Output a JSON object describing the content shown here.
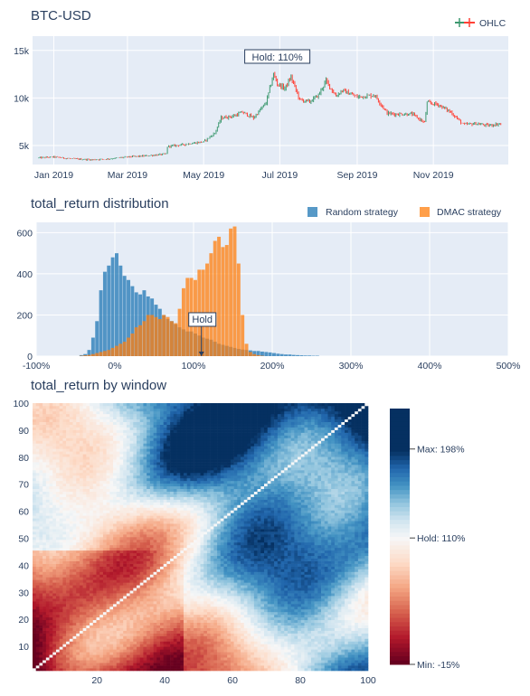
{
  "chart_data": [
    {
      "type": "candlestick",
      "title": "BTC-USD",
      "legend": [
        "OHLC"
      ],
      "legend_position": "top-right",
      "x_ticks": [
        "Jan 2019",
        "Mar 2019",
        "May 2019",
        "Jul 2019",
        "Sep 2019",
        "Nov 2019"
      ],
      "y_ticks": [
        "5k",
        "10k",
        "15k"
      ],
      "ylim": [
        3000,
        16500
      ],
      "grid": true,
      "colors": {
        "up": "#3d9970",
        "down": "#ff4136"
      },
      "annotation": "Hold: 110%",
      "price_path": {
        "x": [
          "2018-12-20",
          "2019-01-01",
          "2019-01-15",
          "2019-02-01",
          "2019-02-15",
          "2019-03-01",
          "2019-03-15",
          "2019-04-01",
          "2019-04-02",
          "2019-04-15",
          "2019-05-01",
          "2019-05-10",
          "2019-05-15",
          "2019-05-25",
          "2019-06-01",
          "2019-06-10",
          "2019-06-20",
          "2019-06-26",
          "2019-06-29",
          "2019-07-05",
          "2019-07-10",
          "2019-07-17",
          "2019-07-25",
          "2019-08-01",
          "2019-08-07",
          "2019-08-15",
          "2019-08-20",
          "2019-09-01",
          "2019-09-15",
          "2019-09-25",
          "2019-10-01",
          "2019-10-15",
          "2019-10-25",
          "2019-10-27",
          "2019-11-05",
          "2019-11-15",
          "2019-11-25",
          "2019-12-05",
          "2019-12-15",
          "2019-12-25"
        ],
        "close": [
          3700,
          3800,
          3600,
          3500,
          3600,
          3800,
          3900,
          4100,
          4900,
          5100,
          5400,
          6300,
          7900,
          8100,
          8500,
          7900,
          9500,
          12500,
          11500,
          11000,
          12200,
          9800,
          9600,
          10300,
          11800,
          10200,
          10800,
          10100,
          10300,
          8400,
          8300,
          8300,
          7400,
          9500,
          9300,
          8500,
          7200,
          7300,
          7100,
          7300
        ]
      }
    },
    {
      "type": "histogram",
      "title": "total_return distribution",
      "legend_position": "top-right",
      "x_ticks": [
        "-100%",
        "0%",
        "100%",
        "200%",
        "300%",
        "400%",
        "500%"
      ],
      "y_ticks": [
        "0",
        "200",
        "400",
        "600"
      ],
      "xlim": [
        -100,
        500
      ],
      "ylim": [
        0,
        650
      ],
      "bin_width": 5,
      "annotation": {
        "text": "Hold",
        "x": 110
      },
      "series": [
        {
          "name": "Random strategy",
          "color": "#1f77b4",
          "x": [
            -45,
            -40,
            -35,
            -30,
            -25,
            -20,
            -15,
            -10,
            -5,
            0,
            5,
            10,
            15,
            20,
            25,
            30,
            35,
            40,
            45,
            50,
            55,
            60,
            65,
            70,
            75,
            80,
            85,
            90,
            95,
            100,
            105,
            110,
            115,
            120,
            125,
            130,
            135,
            140,
            145,
            150,
            155,
            160,
            165,
            170,
            175,
            180,
            185,
            190,
            195,
            200,
            205,
            210,
            215,
            220,
            225,
            230,
            235,
            240,
            245,
            250,
            255
          ],
          "values": [
            5,
            10,
            30,
            90,
            170,
            320,
            410,
            440,
            480,
            500,
            440,
            390,
            370,
            340,
            310,
            300,
            320,
            290,
            280,
            250,
            230,
            200,
            180,
            170,
            155,
            140,
            130,
            120,
            120,
            110,
            100,
            90,
            85,
            80,
            70,
            60,
            55,
            50,
            45,
            40,
            35,
            32,
            30,
            28,
            25,
            25,
            22,
            20,
            18,
            15,
            12,
            10,
            8,
            8,
            6,
            5,
            4,
            3,
            3,
            2,
            2
          ]
        },
        {
          "name": "DMAC strategy",
          "color": "#ff7f0e",
          "x": [
            -45,
            -40,
            -35,
            -30,
            -25,
            -20,
            -15,
            -10,
            -5,
            0,
            5,
            10,
            15,
            20,
            25,
            30,
            35,
            40,
            45,
            50,
            55,
            60,
            65,
            70,
            75,
            80,
            85,
            90,
            95,
            100,
            105,
            110,
            115,
            120,
            125,
            130,
            135,
            140,
            145,
            150,
            155,
            160,
            165,
            170,
            175,
            180,
            185
          ],
          "values": [
            2,
            4,
            6,
            10,
            15,
            20,
            25,
            30,
            40,
            50,
            60,
            70,
            90,
            110,
            140,
            150,
            170,
            200,
            200,
            190,
            180,
            200,
            190,
            170,
            160,
            230,
            330,
            380,
            380,
            370,
            420,
            420,
            450,
            500,
            560,
            580,
            530,
            540,
            620,
            630,
            450,
            200,
            60,
            20,
            10,
            5,
            2
          ]
        }
      ]
    },
    {
      "type": "heatmap",
      "title": "total_return by window",
      "x_ticks": [
        "20",
        "40",
        "60",
        "80",
        "100"
      ],
      "y_ticks": [
        "10",
        "20",
        "30",
        "40",
        "50",
        "60",
        "70",
        "80",
        "90",
        "100"
      ],
      "xlim": [
        1,
        100
      ],
      "ylim": [
        1,
        100
      ],
      "zrange_percent": [
        -15,
        198
      ],
      "hold_percent": 110,
      "colorbar_labels": [
        "Max: 198%",
        "Hold: 110%",
        "Min: -15%"
      ],
      "colorscale": [
        "#67001f",
        "#b2182b",
        "#d6604d",
        "#f4a582",
        "#fddbc7",
        "#f7f7f7",
        "#d1e5f0",
        "#92c5de",
        "#4393c3",
        "#2166ac",
        "#053061"
      ]
    }
  ]
}
